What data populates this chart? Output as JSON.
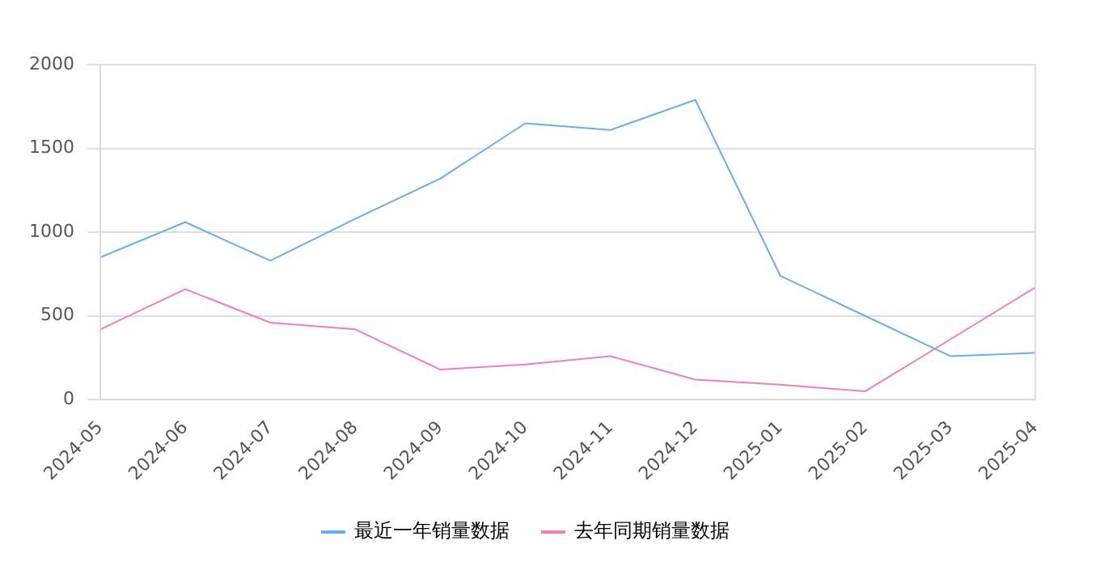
{
  "chart_data": {
    "type": "line",
    "categories": [
      "2024-05",
      "2024-06",
      "2024-07",
      "2024-08",
      "2024-09",
      "2024-10",
      "2024-11",
      "2024-12",
      "2025-01",
      "2025-02",
      "2025-03",
      "2025-04"
    ],
    "series": [
      {
        "name": "最近一年销量数据",
        "color": "#6aaef0",
        "values": [
          850,
          1060,
          830,
          1080,
          1320,
          1650,
          1610,
          1790,
          740,
          500,
          260,
          280
        ]
      },
      {
        "name": "去年同期销量数据",
        "color": "#f27db8",
        "values": [
          420,
          660,
          460,
          420,
          180,
          210,
          260,
          120,
          90,
          50,
          360,
          670
        ]
      }
    ],
    "ylim": [
      0,
      2000
    ],
    "yticks": [
      0,
      500,
      1000,
      1500,
      2000
    ],
    "grid": "y",
    "legend": "bottom",
    "marker": "none"
  }
}
